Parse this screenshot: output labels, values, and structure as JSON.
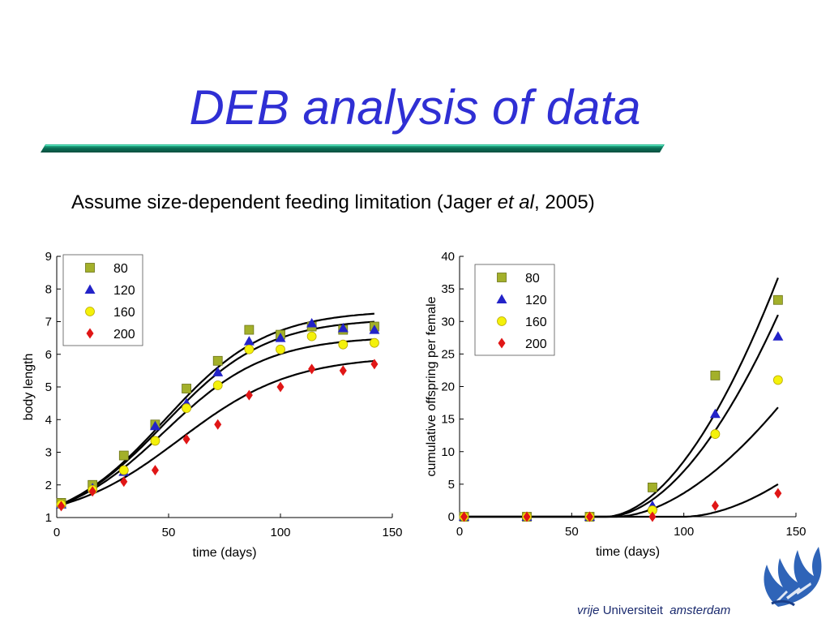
{
  "slide": {
    "title": "DEB analysis of data",
    "subtitle_pre": "Assume size-dependent feeding limitation (Jager ",
    "subtitle_italic": "et al",
    "subtitle_post": ", 2005)"
  },
  "colors": {
    "title": "#2f2fd4",
    "bar_dark": "#0a6e55",
    "bar_light": "#29c499",
    "series": [
      "#a3b02a",
      "#2323c8",
      "#f4f10a",
      "#e01616"
    ]
  },
  "logo": {
    "word1": "vrije",
    "word2": "Universiteit",
    "word3": "amsterdam"
  },
  "chart_data": [
    {
      "type": "scatter",
      "title": "",
      "xlabel": "time (days)",
      "ylabel": "body length",
      "xlim": [
        0,
        150
      ],
      "ylim": [
        1,
        9
      ],
      "xticks": [
        0,
        50,
        100,
        150
      ],
      "yticks": [
        1,
        2,
        3,
        4,
        5,
        6,
        7,
        8,
        9
      ],
      "grid": false,
      "legend": "top-left",
      "series": [
        {
          "name": "80",
          "marker": "square",
          "x": [
            2,
            16,
            30,
            44,
            58,
            72,
            86,
            100,
            114,
            128,
            142
          ],
          "y": [
            1.45,
            2.0,
            2.9,
            3.85,
            4.95,
            5.8,
            6.75,
            6.6,
            6.85,
            6.75,
            6.85
          ]
        },
        {
          "name": "120",
          "marker": "triangle",
          "x": [
            2,
            16,
            30,
            44,
            58,
            72,
            86,
            100,
            114,
            128,
            142
          ],
          "y": [
            1.4,
            1.9,
            2.4,
            3.8,
            4.5,
            5.45,
            6.4,
            6.5,
            6.95,
            6.8,
            6.75
          ]
        },
        {
          "name": "160",
          "marker": "circle",
          "x": [
            2,
            16,
            30,
            44,
            58,
            72,
            86,
            100,
            114,
            128,
            142
          ],
          "y": [
            1.4,
            1.85,
            2.45,
            3.35,
            4.35,
            5.05,
            6.15,
            6.15,
            6.55,
            6.3,
            6.35
          ]
        },
        {
          "name": "200",
          "marker": "diamond",
          "x": [
            2,
            16,
            30,
            44,
            58,
            72,
            86,
            100,
            114,
            128,
            142
          ],
          "y": [
            1.35,
            1.8,
            2.1,
            2.45,
            3.4,
            3.85,
            4.75,
            5.0,
            5.55,
            5.5,
            5.7
          ]
        }
      ],
      "fits": [
        {
          "name": "80",
          "Linf": 7.35,
          "L0": 1.35,
          "k": 0.044,
          "t0": 48.3,
          "xmax": 142
        },
        {
          "name": "120",
          "Linf": 7.1,
          "L0": 1.35,
          "k": 0.044,
          "t0": 48.3,
          "xmax": 142
        },
        {
          "name": "160",
          "Linf": 6.55,
          "L0": 1.35,
          "k": 0.044,
          "t0": 48.3,
          "xmax": 142
        },
        {
          "name": "200",
          "Linf": 5.95,
          "L0": 1.35,
          "k": 0.04,
          "t0": 55.0,
          "xmax": 142
        }
      ]
    },
    {
      "type": "scatter",
      "title": "",
      "xlabel": "time (days)",
      "ylabel": "cumulative offspring per female",
      "xlim": [
        0,
        150
      ],
      "ylim": [
        0,
        40
      ],
      "xticks": [
        0,
        50,
        100,
        150
      ],
      "yticks": [
        0,
        5,
        10,
        15,
        20,
        25,
        30,
        35,
        40
      ],
      "grid": false,
      "legend": "top-left",
      "series": [
        {
          "name": "80",
          "marker": "square",
          "x": [
            2,
            30,
            58,
            86,
            114,
            142
          ],
          "y": [
            0,
            0,
            0,
            4.5,
            21.7,
            33.3
          ]
        },
        {
          "name": "120",
          "marker": "triangle",
          "x": [
            2,
            30,
            58,
            86,
            114,
            142
          ],
          "y": [
            0,
            0,
            0,
            1.7,
            15.8,
            27.7
          ]
        },
        {
          "name": "160",
          "marker": "circle",
          "x": [
            2,
            30,
            58,
            86,
            114,
            142
          ],
          "y": [
            0,
            0,
            0,
            1.0,
            12.7,
            21.0
          ]
        },
        {
          "name": "200",
          "marker": "diamond",
          "x": [
            2,
            30,
            58,
            86,
            114,
            142
          ],
          "y": [
            0,
            0,
            0,
            0,
            1.7,
            3.6
          ]
        }
      ],
      "fits": [
        {
          "name": "80",
          "start": 65,
          "end_x": 142,
          "end_y": 36.7,
          "power": 1.85
        },
        {
          "name": "120",
          "start": 66,
          "end_x": 142,
          "end_y": 31.0,
          "power": 1.85
        },
        {
          "name": "160",
          "start": 70,
          "end_x": 142,
          "end_y": 16.8,
          "power": 1.75
        },
        {
          "name": "200",
          "start": 100,
          "end_x": 142,
          "end_y": 5.0,
          "power": 1.8
        }
      ]
    }
  ]
}
